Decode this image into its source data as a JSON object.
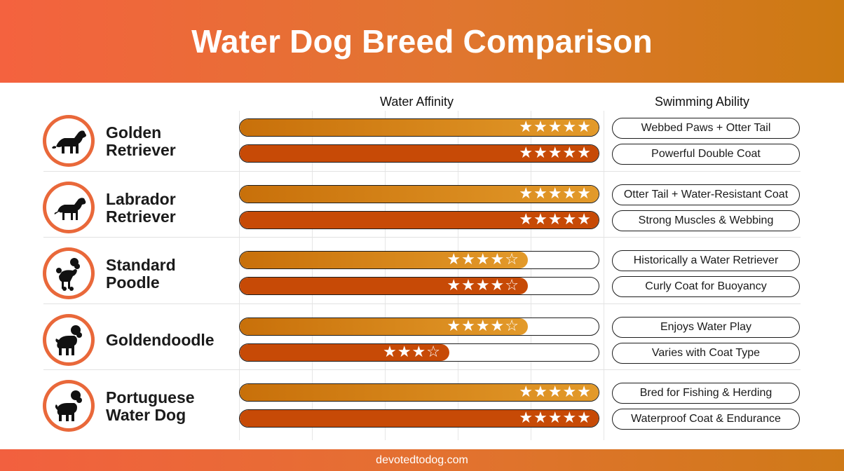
{
  "header": {
    "title": "Water Dog Breed Comparison"
  },
  "columns": {
    "affinity": "Water Affinity",
    "swimming": "Swimming Ability"
  },
  "footer": {
    "text": "devotedtodog.com"
  },
  "colors": {
    "accent": "#e9683a",
    "affinity_bar": "#e39a2a",
    "swimming_bar": "#c74a06"
  },
  "chart_data": {
    "type": "bar",
    "scale_max": 5,
    "categories": [
      "Golden Retriever",
      "Labrador Retriever",
      "Standard Poodle",
      "Goldendoodle",
      "Portuguese Water Dog"
    ],
    "series": [
      {
        "values": [
          5,
          5,
          4,
          4,
          5
        ]
      },
      {
        "values": [
          5,
          5,
          4,
          3,
          5
        ]
      }
    ]
  },
  "breeds": [
    {
      "name_line1": "Golden",
      "name_line2": "Retriever",
      "icon": "golden-retriever-icon",
      "traits": [
        "Webbed Paws + Otter Tail",
        "Powerful Double Coat"
      ]
    },
    {
      "name_line1": "Labrador",
      "name_line2": "Retriever",
      "icon": "labrador-retriever-icon",
      "traits": [
        "Otter Tail + Water-Resistant Coat",
        "Strong Muscles & Webbing"
      ]
    },
    {
      "name_line1": "Standard",
      "name_line2": "Poodle",
      "icon": "poodle-icon",
      "traits": [
        "Historically a Water Retriever",
        "Curly Coat for Buoyancy"
      ]
    },
    {
      "name_line1": "Goldendoodle",
      "name_line2": "",
      "icon": "goldendoodle-icon",
      "traits": [
        "Enjoys Water Play",
        "Varies with Coat Type"
      ]
    },
    {
      "name_line1": "Portuguese",
      "name_line2": "Water Dog",
      "icon": "portuguese-water-dog-icon",
      "traits": [
        "Bred for Fishing & Herding",
        "Waterproof Coat & Endurance"
      ]
    }
  ]
}
